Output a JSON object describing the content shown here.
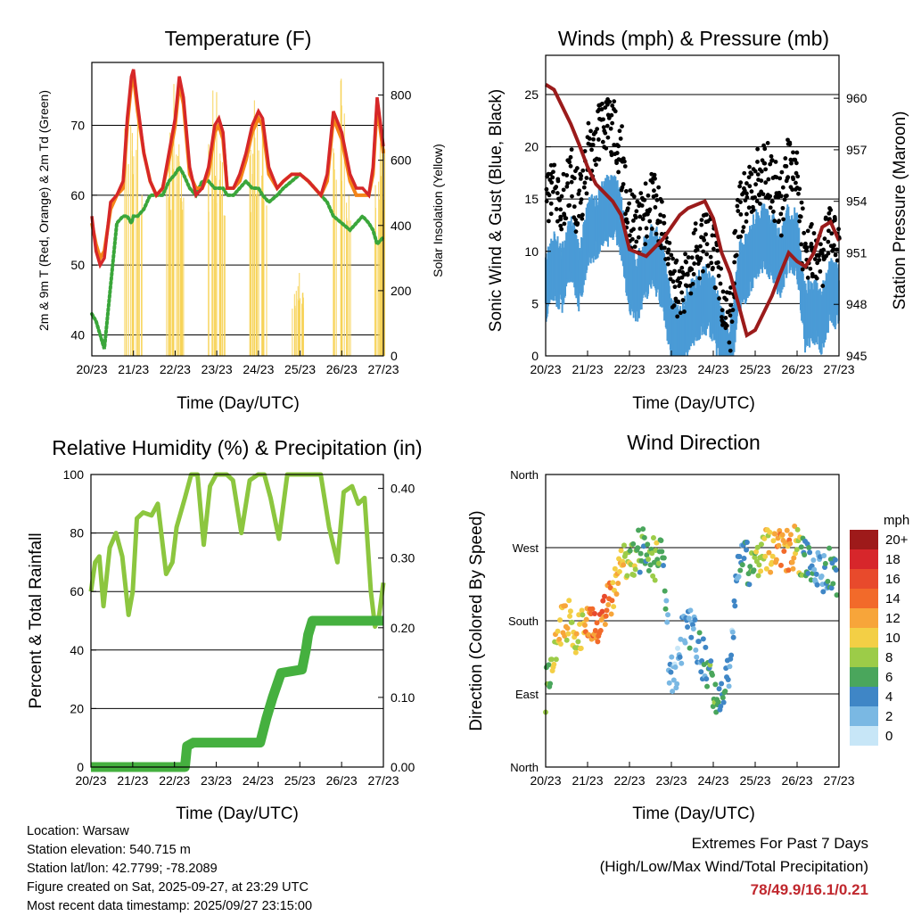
{
  "colors": {
    "temp2m": "#d62728",
    "temp9m": "#f58518",
    "dewpoint": "#3aa63a",
    "solar": "#f7d358",
    "wind": "#4a9bd6",
    "gust": "#000000",
    "pressure": "#9b1b1b",
    "rh": "#8cc63f",
    "precip": "#45b03f",
    "extremes": "#c0272d"
  },
  "time_ticks": [
    "20/23",
    "21/23",
    "22/23",
    "23/23",
    "24/23",
    "25/23",
    "26/23",
    "27/23"
  ],
  "time_label": "Time (Day/UTC)",
  "legend": {
    "title": "mph",
    "labels": [
      "20+",
      "18",
      "16",
      "14",
      "12",
      "10",
      "8",
      "6",
      "4",
      "2",
      "0"
    ],
    "colors": [
      "#9e1a1a",
      "#d7262b",
      "#e84a2c",
      "#f26a2a",
      "#f7a53a",
      "#f3cf45",
      "#9ccc48",
      "#4aa65c",
      "#3f86c6",
      "#7ab8e3",
      "#c7e6f7"
    ]
  },
  "info": {
    "location": "Location: Warsaw",
    "elevation": "Station elevation: 540.715 m",
    "latlon": "Station lat/lon: 42.7799; -78.2089",
    "created": "Figure created on Sat, 2025-09-27, at 23:29 UTC",
    "recent": "Most recent data timestamp: 2025/09/27 23:15:00"
  },
  "extremes": {
    "title": "Extremes For Past 7 Days",
    "subtitle": "(High/Low/Max Wind/Total Precipitation)",
    "values": "78/49.9/16.1/0.21"
  },
  "chart_data": [
    {
      "type": "line",
      "title": "Temperature (F)",
      "xlabel": "Time (Day/UTC)",
      "ylabel": "2m & 9m T (Red, Orange) & 2m Td (Green)",
      "y2label": "Solar Insolation (Yellow)",
      "ylim": [
        37,
        79
      ],
      "y2lim": [
        0,
        900
      ],
      "yticks": [
        40,
        50,
        60,
        70
      ],
      "y2ticks": [
        0,
        200,
        400,
        600,
        800
      ],
      "x": [
        0,
        0.1,
        0.2,
        0.3,
        0.45,
        0.6,
        0.75,
        0.85,
        0.95,
        1.0,
        1.1,
        1.25,
        1.4,
        1.55,
        1.7,
        1.85,
        2.0,
        2.1,
        2.2,
        2.35,
        2.5,
        2.65,
        2.8,
        2.95,
        3.05,
        3.15,
        3.25,
        3.4,
        3.55,
        3.7,
        3.85,
        4.0,
        4.1,
        4.25,
        4.45,
        4.6,
        4.8,
        5.0,
        5.2,
        5.35,
        5.5,
        5.65,
        5.8,
        6.0,
        6.2,
        6.35,
        6.5,
        6.65,
        6.75,
        6.85,
        7.0
      ],
      "series": [
        {
          "name": "2m T",
          "values": [
            57,
            52,
            50,
            51,
            59,
            60,
            62,
            71,
            77,
            78,
            73,
            66,
            62,
            60,
            61,
            66,
            71,
            77,
            74,
            64,
            60,
            61,
            64,
            70,
            71,
            69,
            61,
            61,
            63,
            66,
            70,
            72,
            71,
            64,
            61,
            62,
            63,
            63,
            62,
            61,
            60,
            63,
            72,
            69,
            63,
            61,
            61,
            60,
            64,
            74,
            67
          ]
        },
        {
          "name": "9m T",
          "values": [
            56,
            53,
            51,
            52,
            58,
            60,
            61,
            70,
            76,
            77,
            72,
            66,
            62,
            60,
            61,
            65,
            70,
            76,
            73,
            63,
            61,
            61,
            63,
            69,
            70,
            68,
            61,
            61,
            62,
            65,
            69,
            71,
            70,
            63,
            61,
            62,
            63,
            63,
            62,
            61,
            60,
            62,
            71,
            68,
            62,
            60,
            60,
            60,
            63,
            73,
            66
          ]
        },
        {
          "name": "2m Td",
          "values": [
            43,
            42,
            40,
            38,
            47,
            56,
            57,
            57,
            56,
            57,
            57,
            58,
            60,
            60,
            60,
            62,
            63,
            64,
            63,
            61,
            60,
            62,
            62,
            61,
            61,
            61,
            60,
            60,
            61,
            62,
            61,
            61,
            60,
            59,
            60,
            61,
            62,
            63,
            62,
            61,
            60,
            59,
            57,
            56,
            55,
            56,
            57,
            56,
            55,
            53,
            54
          ]
        },
        {
          "name": "Solar",
          "axis": "right",
          "bars": [
            [
              0.85,
              720
            ],
            [
              0.95,
              800
            ],
            [
              1.05,
              760
            ],
            [
              1.15,
              600
            ],
            [
              1.85,
              720
            ],
            [
              1.95,
              860
            ],
            [
              2.05,
              760
            ],
            [
              2.15,
              640
            ],
            [
              2.85,
              700
            ],
            [
              2.95,
              840
            ],
            [
              3.05,
              780
            ],
            [
              3.15,
              620
            ],
            [
              3.85,
              640
            ],
            [
              3.95,
              810
            ],
            [
              4.05,
              720
            ],
            [
              4.15,
              560
            ],
            [
              4.85,
              200
            ],
            [
              4.95,
              260
            ],
            [
              5.05,
              240
            ],
            [
              5.85,
              700
            ],
            [
              5.95,
              880
            ],
            [
              6.05,
              760
            ],
            [
              6.15,
              540
            ],
            [
              6.85,
              540
            ],
            [
              6.95,
              760
            ],
            [
              7.0,
              700
            ]
          ]
        }
      ]
    },
    {
      "type": "scatter",
      "title": "Winds (mph) & Pressure (mb)",
      "xlabel": "Time (Day/UTC)",
      "ylabel": "Sonic Wind & Gust (Blue, Black)",
      "y2label": "Station Pressure (Maroon)",
      "ylim": [
        0,
        28.75
      ],
      "y2lim": [
        945,
        962.5
      ],
      "yticks": [
        0,
        5,
        10,
        15,
        20,
        25
      ],
      "y2ticks": [
        945,
        948,
        951,
        954,
        957,
        960
      ],
      "x": [
        0,
        0.2,
        0.4,
        0.6,
        0.8,
        1.0,
        1.2,
        1.4,
        1.6,
        1.8,
        2.0,
        2.2,
        2.4,
        2.6,
        2.8,
        3.0,
        3.2,
        3.4,
        3.6,
        3.8,
        4.0,
        4.2,
        4.4,
        4.6,
        4.8,
        5.0,
        5.2,
        5.4,
        5.6,
        5.8,
        6.0,
        6.2,
        6.4,
        6.6,
        6.8,
        7.0
      ],
      "series": [
        {
          "name": "Wind",
          "values": [
            8,
            10,
            9,
            12,
            9,
            13,
            14,
            15,
            16,
            14,
            9,
            8,
            10,
            11,
            9,
            4,
            3,
            5,
            6,
            7,
            6,
            3,
            1,
            9,
            10,
            12,
            13,
            12,
            10,
            13,
            12,
            5,
            6,
            5,
            8,
            7
          ]
        },
        {
          "name": "Gust",
          "values": [
            14,
            16,
            15,
            17,
            14,
            19,
            21,
            22,
            22,
            19,
            13,
            12,
            14,
            15,
            12,
            7,
            6,
            8,
            10,
            11,
            10,
            6,
            3,
            14,
            15,
            17,
            18,
            17,
            14,
            18,
            17,
            9,
            10,
            9,
            12,
            11
          ]
        },
        {
          "name": "Pressure",
          "axis": "right",
          "values": [
            960.8,
            960.5,
            959.5,
            958.5,
            957.3,
            956.0,
            955.0,
            954.5,
            954.0,
            953.2,
            951.2,
            951.0,
            950.8,
            951.3,
            951.8,
            952.5,
            953.2,
            953.6,
            953.8,
            954.0,
            953.0,
            951.0,
            949.8,
            948.0,
            946.2,
            946.5,
            947.5,
            948.5,
            949.8,
            951.0,
            950.5,
            950.2,
            951.0,
            952.5,
            952.8,
            951.7
          ]
        }
      ]
    },
    {
      "type": "line",
      "title": "Relative Humidity (%) & Precipitation (in)",
      "xlabel": "Time (Day/UTC)",
      "ylabel": "Percent & Total Rainfall",
      "ylim": [
        0,
        100
      ],
      "y2lim": [
        0,
        0.42
      ],
      "yticks": [
        0,
        20,
        40,
        60,
        80,
        100
      ],
      "y2ticks": [
        0.0,
        0.1,
        0.2,
        0.3,
        0.4
      ],
      "y2ticklabels": [
        "0.00",
        "0.10",
        "0.20",
        "0.30",
        "0.40"
      ],
      "x": [
        0,
        0.1,
        0.2,
        0.3,
        0.45,
        0.6,
        0.75,
        0.9,
        1.0,
        1.1,
        1.25,
        1.45,
        1.6,
        1.8,
        1.95,
        2.05,
        2.25,
        2.4,
        2.55,
        2.7,
        2.85,
        3.0,
        3.15,
        3.25,
        3.4,
        3.6,
        3.8,
        4.0,
        4.15,
        4.3,
        4.5,
        4.7,
        4.9,
        5.0,
        5.15,
        5.3,
        5.5,
        5.7,
        5.9,
        6.05,
        6.25,
        6.4,
        6.55,
        6.7,
        6.8,
        6.9,
        7.0
      ],
      "series": [
        {
          "name": "Relative Humidity",
          "values": [
            60,
            70,
            72,
            55,
            75,
            80,
            72,
            52,
            60,
            85,
            87,
            86,
            90,
            66,
            70,
            82,
            92,
            100,
            100,
            76,
            96,
            100,
            100,
            100,
            98,
            80,
            98,
            100,
            100,
            92,
            78,
            100,
            100,
            100,
            100,
            100,
            100,
            82,
            70,
            94,
            96,
            90,
            92,
            60,
            48,
            52,
            63
          ]
        },
        {
          "name": "Precipitation",
          "axis": "right",
          "steps": [
            [
              0,
              0
            ],
            [
              2.25,
              0
            ],
            [
              2.3,
              0.03
            ],
            [
              2.45,
              0.035
            ],
            [
              4.05,
              0.035
            ],
            [
              4.2,
              0.07
            ],
            [
              4.35,
              0.1
            ],
            [
              4.55,
              0.135
            ],
            [
              5.05,
              0.14
            ],
            [
              5.15,
              0.17
            ],
            [
              5.2,
              0.19
            ],
            [
              5.3,
              0.21
            ],
            [
              7.0,
              0.21
            ]
          ]
        }
      ]
    },
    {
      "type": "scatter",
      "title": "Wind Direction",
      "xlabel": "Time (Day/UTC)",
      "ylabel": "Direction (Colored By Speed)",
      "yticks": [
        0,
        90,
        180,
        270,
        360
      ],
      "yticklabels": [
        "North",
        "East",
        "South",
        "West",
        "North"
      ],
      "ylim": [
        0,
        360
      ],
      "x": [
        0,
        0.2,
        0.4,
        0.6,
        0.8,
        1.0,
        1.2,
        1.4,
        1.6,
        1.8,
        2.0,
        2.2,
        2.4,
        2.6,
        2.8,
        2.95,
        3.1,
        3.3,
        3.5,
        3.7,
        3.9,
        4.1,
        4.3,
        4.45,
        4.6,
        4.8,
        5.0,
        5.2,
        5.4,
        5.6,
        5.8,
        6.0,
        6.2,
        6.4,
        6.6,
        6.8,
        6.95
      ],
      "series": [
        {
          "name": "Direction",
          "values": [
            95,
            150,
            175,
            180,
            160,
            185,
            175,
            200,
            215,
            240,
            255,
            265,
            270,
            255,
            280,
            130,
            100,
            175,
            165,
            140,
            110,
            90,
            100,
            145,
            260,
            250,
            255,
            270,
            262,
            265,
            268,
            270,
            250,
            255,
            230,
            245,
            235
          ]
        },
        {
          "name": "Speed",
          "values": [
            7,
            9,
            11,
            10,
            9,
            12,
            14,
            14,
            12,
            10,
            8,
            7,
            6,
            8,
            6,
            3,
            2,
            3,
            4,
            3,
            6,
            6,
            5,
            2,
            3,
            5,
            8,
            10,
            11,
            12,
            13,
            10,
            5,
            4,
            3,
            5,
            4
          ]
        }
      ]
    }
  ]
}
